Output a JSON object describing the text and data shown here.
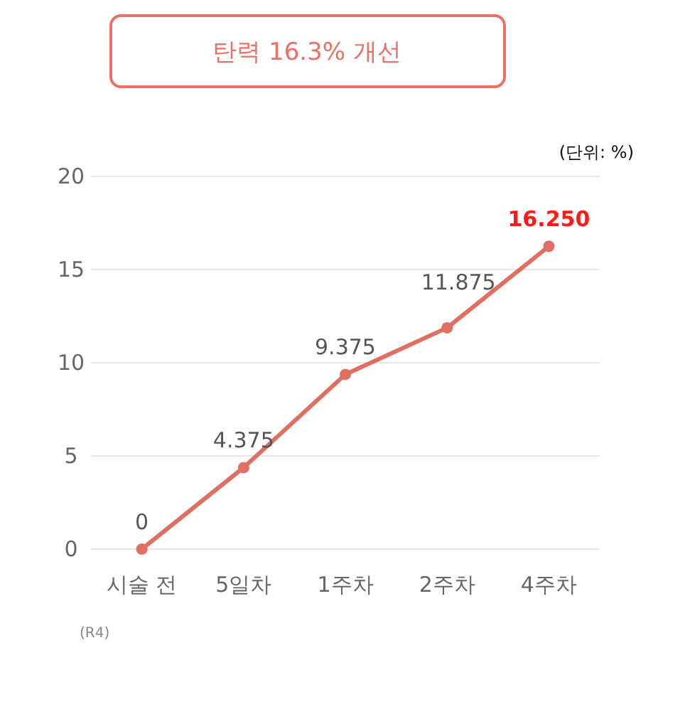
{
  "chart_data": {
    "type": "line",
    "title": "탄력 16.3% 개선",
    "categories": [
      "시술 전",
      "5일차",
      "1주차",
      "2주차",
      "4주차"
    ],
    "series": [
      {
        "color": "#e06f63",
        "values": [
          0,
          4.375,
          9.375,
          11.875,
          16.25
        ],
        "value_labels": [
          "0",
          "4.375",
          "9.375",
          "11.875",
          "16.250"
        ]
      }
    ],
    "ylim": [
      0,
      20
    ],
    "yticks": [
      0,
      5,
      10,
      15,
      20
    ],
    "grid": "y",
    "marker": "circle",
    "line_style": "solid",
    "annotations": [
      "(단위: %)",
      "(R4)"
    ]
  }
}
